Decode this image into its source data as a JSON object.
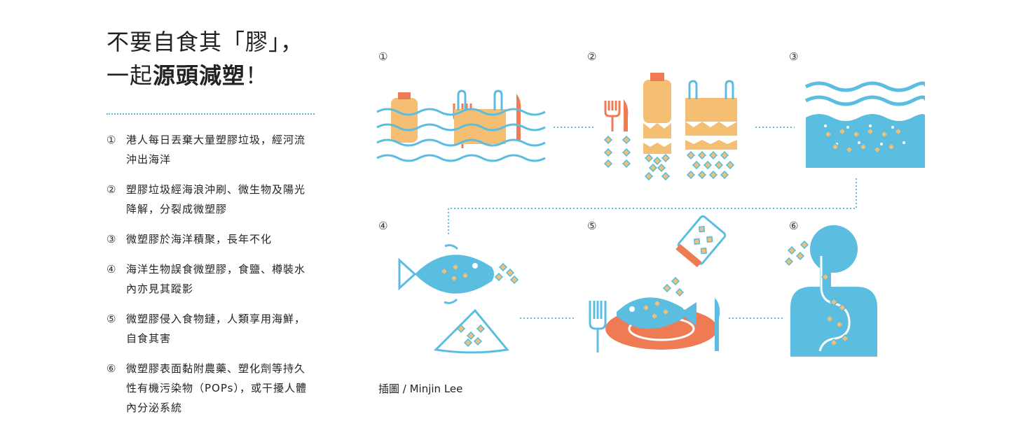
{
  "title": {
    "line1": "不要自食其「膠」，",
    "line2_prefix": "一起",
    "line2_bold": "源頭減塑",
    "line2_suffix": "！"
  },
  "steps": [
    {
      "num": "①",
      "text": "港人每日丟棄大量塑膠垃圾，經河流沖出海洋"
    },
    {
      "num": "②",
      "text": "塑膠垃圾經海浪沖刷、微生物及陽光降解，分裂成微塑膠"
    },
    {
      "num": "③",
      "text": "微塑膠於海洋積聚，長年不化"
    },
    {
      "num": "④",
      "text": "海洋生物誤食微塑膠，食鹽、樽裝水內亦見其蹤影"
    },
    {
      "num": "⑤",
      "text": "微塑膠侵入食物鏈，人類享用海鮮，自食其害"
    },
    {
      "num": "⑥",
      "text": "微塑膠表面黏附農藥、塑化劑等持久性有機污染物（POPs），或干擾人體內分泌系統"
    }
  ],
  "panels": [
    {
      "num": "①",
      "icon": "plastic-waste-in-waves-icon"
    },
    {
      "num": "②",
      "icon": "plastic-fragmenting-icon"
    },
    {
      "num": "③",
      "icon": "microplastics-in-ocean-icon"
    },
    {
      "num": "④",
      "icon": "fish-eating-microplastics-icon"
    },
    {
      "num": "⑤",
      "icon": "seafood-meal-icon"
    },
    {
      "num": "⑥",
      "icon": "human-body-icon"
    }
  ],
  "credit": "插圖 / Minjin Lee",
  "colors": {
    "blue": "#5bbde0",
    "orange": "#f5bf73",
    "red": "#ee7b54",
    "dots": "#5dbfe0"
  }
}
